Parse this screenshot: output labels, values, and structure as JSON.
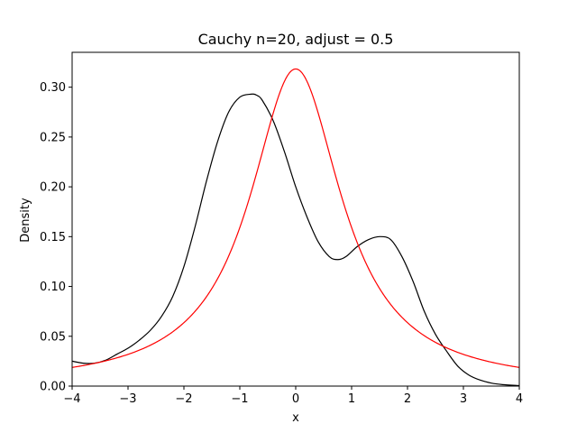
{
  "chart_data": {
    "type": "line",
    "title": "Cauchy n=20, adjust = 0.5",
    "xlabel": "x",
    "ylabel": "Density",
    "xlim": [
      -4,
      4
    ],
    "ylim": [
      0,
      0.335
    ],
    "grid": false,
    "x_ticks": [
      -4,
      -3,
      -2,
      -1,
      0,
      1,
      2,
      3,
      4
    ],
    "x_tick_labels": [
      "−4",
      "−3",
      "−2",
      "−1",
      "0",
      "1",
      "2",
      "3",
      "4"
    ],
    "y_ticks": [
      0,
      0.05,
      0.1,
      0.15,
      0.2,
      0.25,
      0.3
    ],
    "y_tick_labels": [
      "0.00",
      "0.05",
      "0.10",
      "0.15",
      "0.20",
      "0.25",
      "0.30"
    ],
    "series": [
      {
        "color": "#000000",
        "x": [
          -4.0,
          -3.8,
          -3.6,
          -3.4,
          -3.2,
          -3.0,
          -2.8,
          -2.6,
          -2.4,
          -2.2,
          -2.0,
          -1.8,
          -1.6,
          -1.4,
          -1.2,
          -1.0,
          -0.8,
          -0.7,
          -0.6,
          -0.4,
          -0.2,
          0.0,
          0.2,
          0.4,
          0.6,
          0.75,
          0.9,
          1.1,
          1.3,
          1.5,
          1.7,
          1.9,
          2.1,
          2.3,
          2.5,
          2.7,
          2.9,
          3.1,
          3.3,
          3.5,
          3.7,
          4.0
        ],
        "y": [
          0.025,
          0.023,
          0.023,
          0.026,
          0.032,
          0.038,
          0.046,
          0.056,
          0.07,
          0.09,
          0.12,
          0.16,
          0.205,
          0.245,
          0.275,
          0.29,
          0.293,
          0.292,
          0.287,
          0.266,
          0.235,
          0.2,
          0.17,
          0.145,
          0.13,
          0.127,
          0.13,
          0.14,
          0.147,
          0.15,
          0.147,
          0.13,
          0.105,
          0.075,
          0.052,
          0.035,
          0.02,
          0.011,
          0.006,
          0.003,
          0.0015,
          0.0005
        ]
      },
      {
        "color": "#ff0000",
        "function": "cauchy_pdf",
        "x_range": [
          -4,
          4
        ]
      }
    ]
  }
}
